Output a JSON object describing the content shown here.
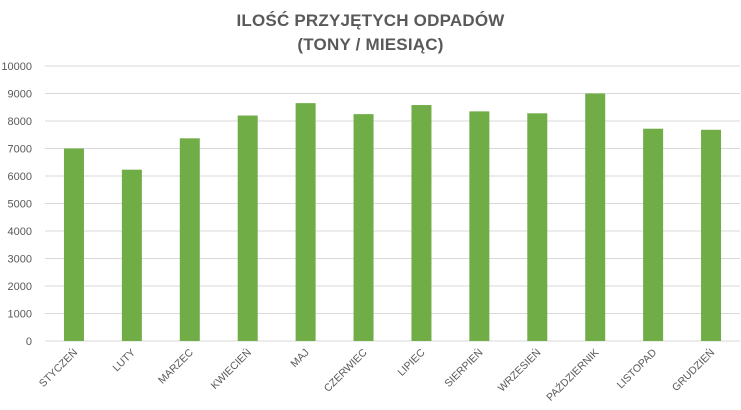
{
  "chart_data": {
    "type": "bar",
    "title": [
      "ILOŚĆ PRZYJĘTYCH ODPADÓW",
      "(TONY / MIESIĄC)"
    ],
    "xlabel": "",
    "ylabel": "",
    "categories": [
      "STYCZEŃ",
      "LUTY",
      "MARZEC",
      "KWIECIEŃ",
      "MAJ",
      "CZERWIEC",
      "LIPIEC",
      "SIERPIEŃ",
      "WRZESIEŃ",
      "PAŹDZIERNIK",
      "LISTOPAD",
      "GRUDZIEŃ"
    ],
    "values": [
      7000,
      6230,
      7370,
      8200,
      8650,
      8250,
      8580,
      8350,
      8280,
      9000,
      7720,
      7680
    ],
    "ylim": [
      0,
      10000
    ],
    "yticks": [
      0,
      1000,
      2000,
      3000,
      4000,
      5000,
      6000,
      7000,
      8000,
      9000,
      10000
    ],
    "grid": true,
    "legend": "none",
    "bar_color": "#70ad47",
    "grid_color": "#d9d9d9",
    "text_color": "#595959"
  }
}
